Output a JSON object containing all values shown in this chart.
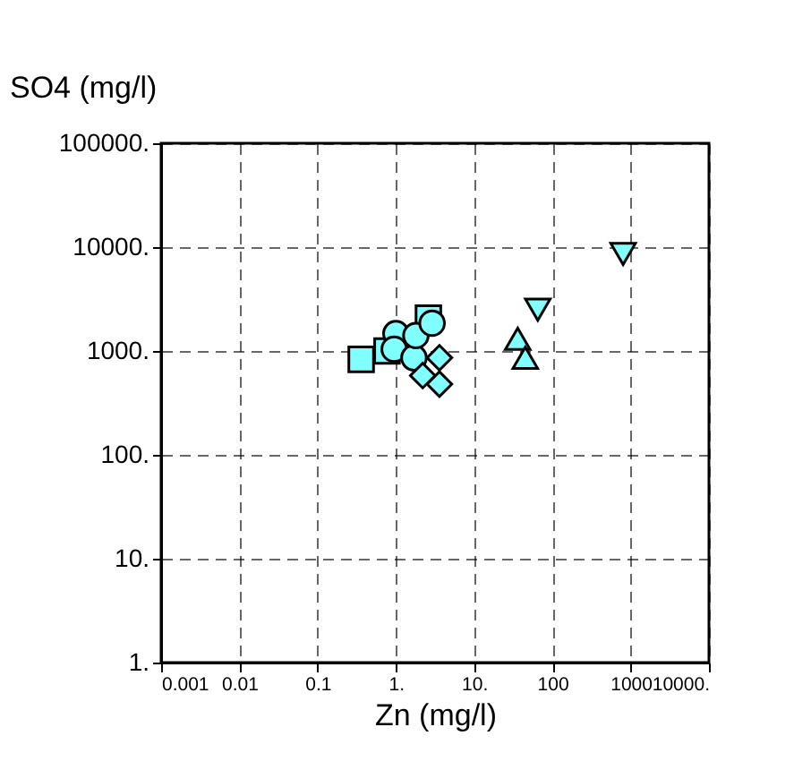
{
  "chart_data": {
    "type": "scatter",
    "xlabel": "Zn (mg/l)",
    "ylabel": "SO4 (mg/l)",
    "log": "xy",
    "grid": true,
    "xlim": [
      0.001,
      10000
    ],
    "ylim": [
      1,
      100000
    ],
    "xticks": [
      {
        "value": 0.001,
        "label": "0.001"
      },
      {
        "value": 0.01,
        "label": "0.01"
      },
      {
        "value": 0.1,
        "label": "0.1"
      },
      {
        "value": 1,
        "label": "1."
      },
      {
        "value": 10,
        "label": "10."
      },
      {
        "value": 100,
        "label": "100"
      },
      {
        "value": 1000,
        "label": "1000"
      },
      {
        "value": 10000,
        "label": "10000."
      }
    ],
    "yticks": [
      {
        "value": 1,
        "label": "1."
      },
      {
        "value": 10,
        "label": "10."
      },
      {
        "value": 100,
        "label": "100."
      },
      {
        "value": 1000,
        "label": "1000."
      },
      {
        "value": 10000,
        "label": "10000."
      },
      {
        "value": 100000,
        "label": "100000."
      }
    ],
    "series": [
      {
        "marker": "square",
        "color": "#80ffff",
        "x": [
          0.36,
          0.77,
          2.6
        ],
        "values": [
          830,
          1000,
          2070
        ]
      },
      {
        "marker": "circle",
        "color": "#80ffff",
        "x": [
          1.0,
          0.95,
          1.7,
          1.8,
          2.9
        ],
        "values": [
          1470,
          1040,
          860,
          1410,
          1850
        ]
      },
      {
        "marker": "diamond",
        "color": "#80ffff",
        "x": [
          3.6,
          2.2,
          3.6
        ],
        "values": [
          860,
          580,
          480
        ]
      },
      {
        "marker": "triangle",
        "color": "#80ffff",
        "x": [
          36,
          45
        ],
        "values": [
          1310,
          860
        ]
      },
      {
        "marker": "triangle-down",
        "color": "#80ffff",
        "x": [
          65,
          800
        ],
        "values": [
          2500,
          8600
        ]
      }
    ]
  }
}
